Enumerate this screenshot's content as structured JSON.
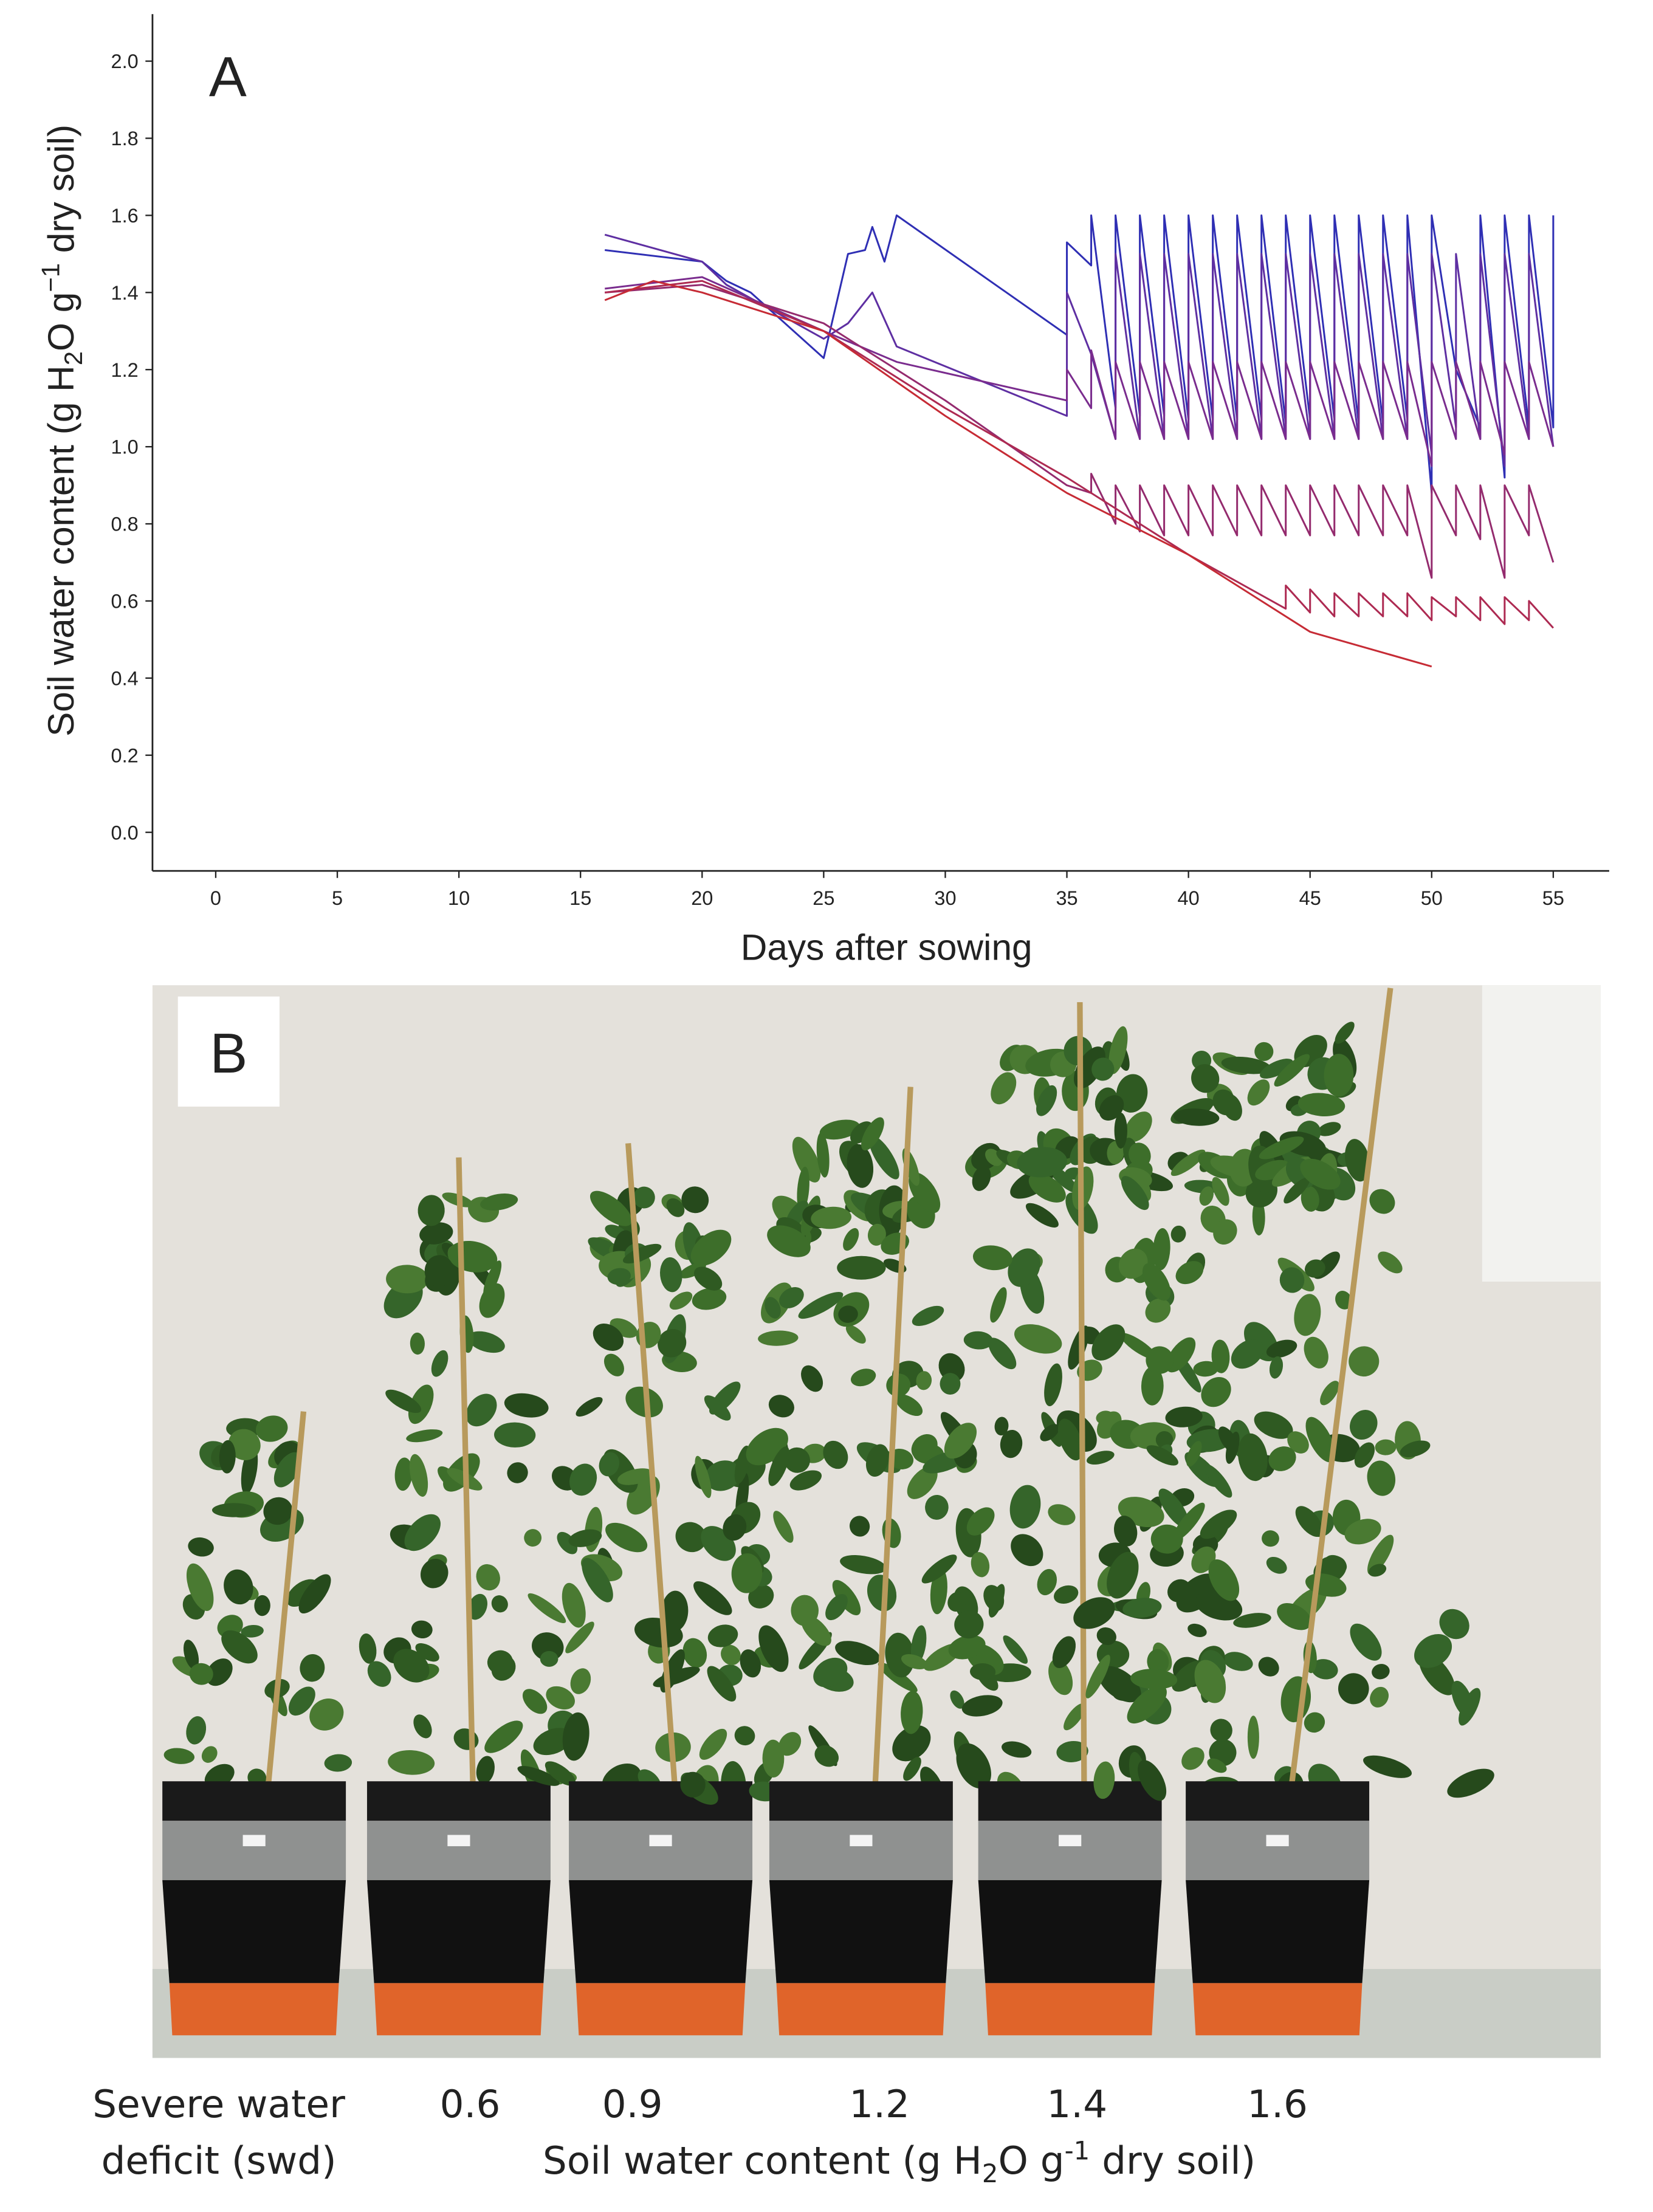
{
  "chart_data": {
    "type": "line",
    "panel_label": "A",
    "ylabel": [
      "Soil water content (g H",
      "2",
      "O g",
      "−1",
      " dry soil)"
    ],
    "xlabel": "Days after sowing",
    "xlim": [
      -2.6,
      57.3
    ],
    "ylim": [
      -0.1,
      2.1
    ],
    "xticks": [
      0,
      5,
      10,
      15,
      20,
      25,
      30,
      35,
      40,
      45,
      50,
      55
    ],
    "yticks": [
      {
        "value": 0,
        "label": "0.0"
      },
      0.2,
      0.4,
      0.6,
      0.8,
      {
        "value": 1,
        "label": "1.0"
      },
      1.2,
      1.4,
      1.6,
      1.8,
      {
        "value": 2,
        "label": "2.0"
      }
    ],
    "grid": false,
    "series": [
      {
        "color": "#2f2fb4",
        "x": [
          16,
          20,
          21,
          22,
          25,
          26,
          26.7,
          27,
          27.5,
          28,
          35,
          35,
          36,
          36,
          37,
          37,
          38,
          38,
          39,
          39,
          40,
          40,
          41,
          41,
          42,
          42,
          43,
          43,
          44,
          44,
          45,
          45,
          46,
          46,
          47,
          47,
          48,
          48,
          49,
          49,
          50,
          50,
          51,
          52,
          52,
          53,
          53,
          54,
          54,
          55,
          55
        ],
        "values": [
          1.51,
          1.48,
          1.43,
          1.4,
          1.23,
          1.5,
          1.51,
          1.57,
          1.48,
          1.6,
          1.29,
          1.53,
          1.47,
          1.6,
          1.1,
          1.6,
          1.08,
          1.6,
          1.08,
          1.6,
          1.07,
          1.6,
          1.07,
          1.6,
          1.07,
          1.6,
          1.07,
          1.6,
          1.06,
          1.6,
          1.07,
          1.6,
          1.07,
          1.6,
          1.06,
          1.6,
          1.06,
          1.6,
          1.07,
          1.6,
          0.88,
          1.6,
          1.2,
          1.05,
          1.6,
          0.92,
          1.6,
          1.05,
          1.6,
          1.05,
          1.6
        ]
      },
      {
        "color": "#5e2fa2",
        "x": [
          16,
          20,
          21,
          25,
          26,
          27,
          28,
          35,
          35,
          36,
          37,
          37,
          38,
          38,
          39,
          39,
          40,
          40,
          41,
          41,
          42,
          42,
          43,
          43,
          44,
          44,
          45,
          45,
          46,
          46,
          47,
          47,
          48,
          48,
          49,
          49,
          50,
          50,
          51,
          51,
          52,
          52,
          53,
          53,
          54,
          54,
          55
        ],
        "values": [
          1.55,
          1.48,
          1.42,
          1.28,
          1.32,
          1.4,
          1.26,
          1.08,
          1.4,
          1.24,
          1.02,
          1.5,
          1.02,
          1.5,
          1.02,
          1.5,
          1.02,
          1.5,
          1.02,
          1.5,
          1.02,
          1.5,
          1.02,
          1.5,
          1.02,
          1.5,
          1.02,
          1.5,
          1.02,
          1.5,
          1.02,
          1.5,
          1.02,
          1.5,
          1.02,
          1.5,
          0.98,
          1.5,
          1.05,
          1.5,
          1.02,
          1.5,
          0.95,
          1.5,
          1.02,
          1.5,
          1.0
        ]
      },
      {
        "color": "#7a2c8e",
        "x": [
          16,
          20,
          25,
          28,
          35,
          35,
          36,
          36,
          37,
          37,
          38,
          38,
          39,
          39,
          40,
          40,
          41,
          41,
          42,
          42,
          43,
          43,
          44,
          44,
          45,
          45,
          46,
          46,
          47,
          47,
          48,
          48,
          49,
          49,
          50,
          50,
          51,
          51,
          52,
          52,
          53,
          53,
          54,
          54,
          55
        ],
        "values": [
          1.41,
          1.44,
          1.3,
          1.22,
          1.12,
          1.2,
          1.1,
          1.25,
          1.02,
          1.22,
          1.02,
          1.22,
          1.02,
          1.22,
          1.02,
          1.22,
          1.02,
          1.22,
          1.02,
          1.22,
          1.02,
          1.22,
          1.02,
          1.22,
          1.02,
          1.22,
          1.02,
          1.22,
          1.02,
          1.22,
          1.02,
          1.22,
          1.02,
          1.22,
          0.95,
          1.22,
          1.02,
          1.22,
          1.02,
          1.22,
          0.98,
          1.22,
          1.02,
          1.22,
          1.0
        ]
      },
      {
        "color": "#942b6e",
        "x": [
          16,
          20,
          25,
          30,
          35,
          36,
          36,
          37,
          37,
          38,
          38,
          39,
          39,
          40,
          40,
          41,
          41,
          42,
          42,
          43,
          43,
          44,
          44,
          45,
          45,
          46,
          46,
          47,
          47,
          48,
          48,
          49,
          49,
          50,
          50,
          51,
          51,
          52,
          52,
          53,
          53,
          54,
          54,
          55
        ],
        "values": [
          1.4,
          1.42,
          1.32,
          1.12,
          0.9,
          0.88,
          0.93,
          0.8,
          0.9,
          0.78,
          0.9,
          0.77,
          0.9,
          0.77,
          0.9,
          0.77,
          0.9,
          0.77,
          0.9,
          0.77,
          0.9,
          0.77,
          0.9,
          0.77,
          0.9,
          0.77,
          0.9,
          0.77,
          0.9,
          0.77,
          0.9,
          0.77,
          0.9,
          0.66,
          0.9,
          0.77,
          0.9,
          0.76,
          0.9,
          0.66,
          0.9,
          0.77,
          0.9,
          0.7
        ]
      },
      {
        "color": "#ad2a52",
        "x": [
          16,
          20,
          25,
          30,
          35,
          40,
          44,
          44,
          45,
          45,
          46,
          46,
          47,
          47,
          48,
          48,
          49,
          49,
          50,
          50,
          51,
          51,
          52,
          52,
          53,
          53,
          54,
          54,
          55
        ],
        "values": [
          1.4,
          1.43,
          1.3,
          1.1,
          0.92,
          0.72,
          0.58,
          0.64,
          0.57,
          0.63,
          0.56,
          0.62,
          0.56,
          0.62,
          0.56,
          0.62,
          0.56,
          0.62,
          0.55,
          0.61,
          0.56,
          0.61,
          0.55,
          0.61,
          0.54,
          0.61,
          0.55,
          0.6,
          0.53
        ]
      },
      {
        "color": "#c62b35",
        "x": [
          16,
          18,
          20,
          25,
          30,
          35,
          40,
          45,
          50
        ],
        "values": [
          1.38,
          1.43,
          1.4,
          1.3,
          1.08,
          0.88,
          0.72,
          0.52,
          0.43
        ]
      }
    ]
  },
  "photo": {
    "panel_label": "B",
    "swd_caption": [
      "Severe water",
      "deficit (swd)"
    ],
    "levels": [
      "0.6",
      "0.9",
      "1.2",
      "1.4",
      "1.6"
    ],
    "caption": [
      "Soil water content (g H",
      "2",
      "O g",
      "-1",
      " dry soil)"
    ]
  }
}
